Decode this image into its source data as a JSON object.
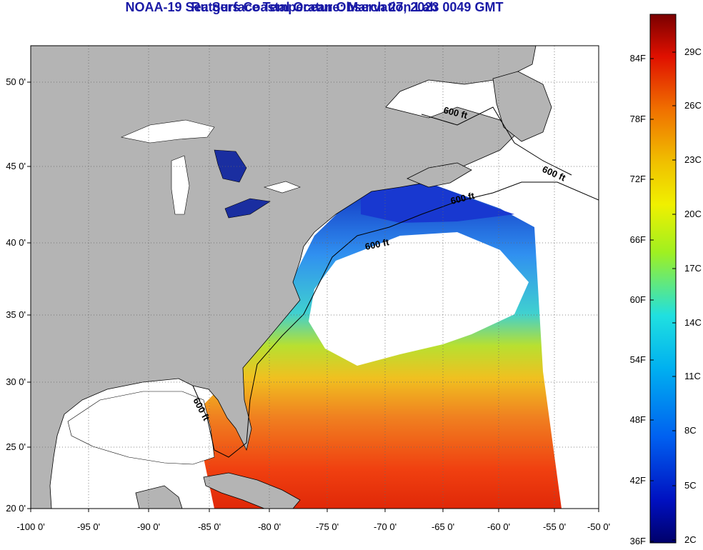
{
  "title": "NOAA-19 Sea Surface Temperature:  March 27, 2023 0049 GMT",
  "subtitle": "Rutgers Coastal Ocean Observation Lab",
  "lat_labels": [
    "50 0'",
    "45 0'",
    "40 0'",
    "35 0'",
    "30 0'",
    "25 0'",
    "20 0'"
  ],
  "lon_labels": [
    "-100 0'",
    "-95 0'",
    "-90 0'",
    "-85 0'",
    "-80 0'",
    "-75 0'",
    "-70 0'",
    "-65 0'",
    "-60 0'",
    "-55 0'",
    "-50 0'"
  ],
  "contour_label": "600 ft",
  "colorbar": {
    "fahrenheit": [
      "84F",
      "78F",
      "72F",
      "66F",
      "60F",
      "54F",
      "48F",
      "42F",
      "36F"
    ],
    "celsius": [
      "29C",
      "26C",
      "23C",
      "20C",
      "17C",
      "14C",
      "11C",
      "8C",
      "5C",
      "2C"
    ]
  },
  "colors": {
    "title": "#1a1aa6",
    "land": "#b4b4b4",
    "cloud": "#ffffff"
  }
}
